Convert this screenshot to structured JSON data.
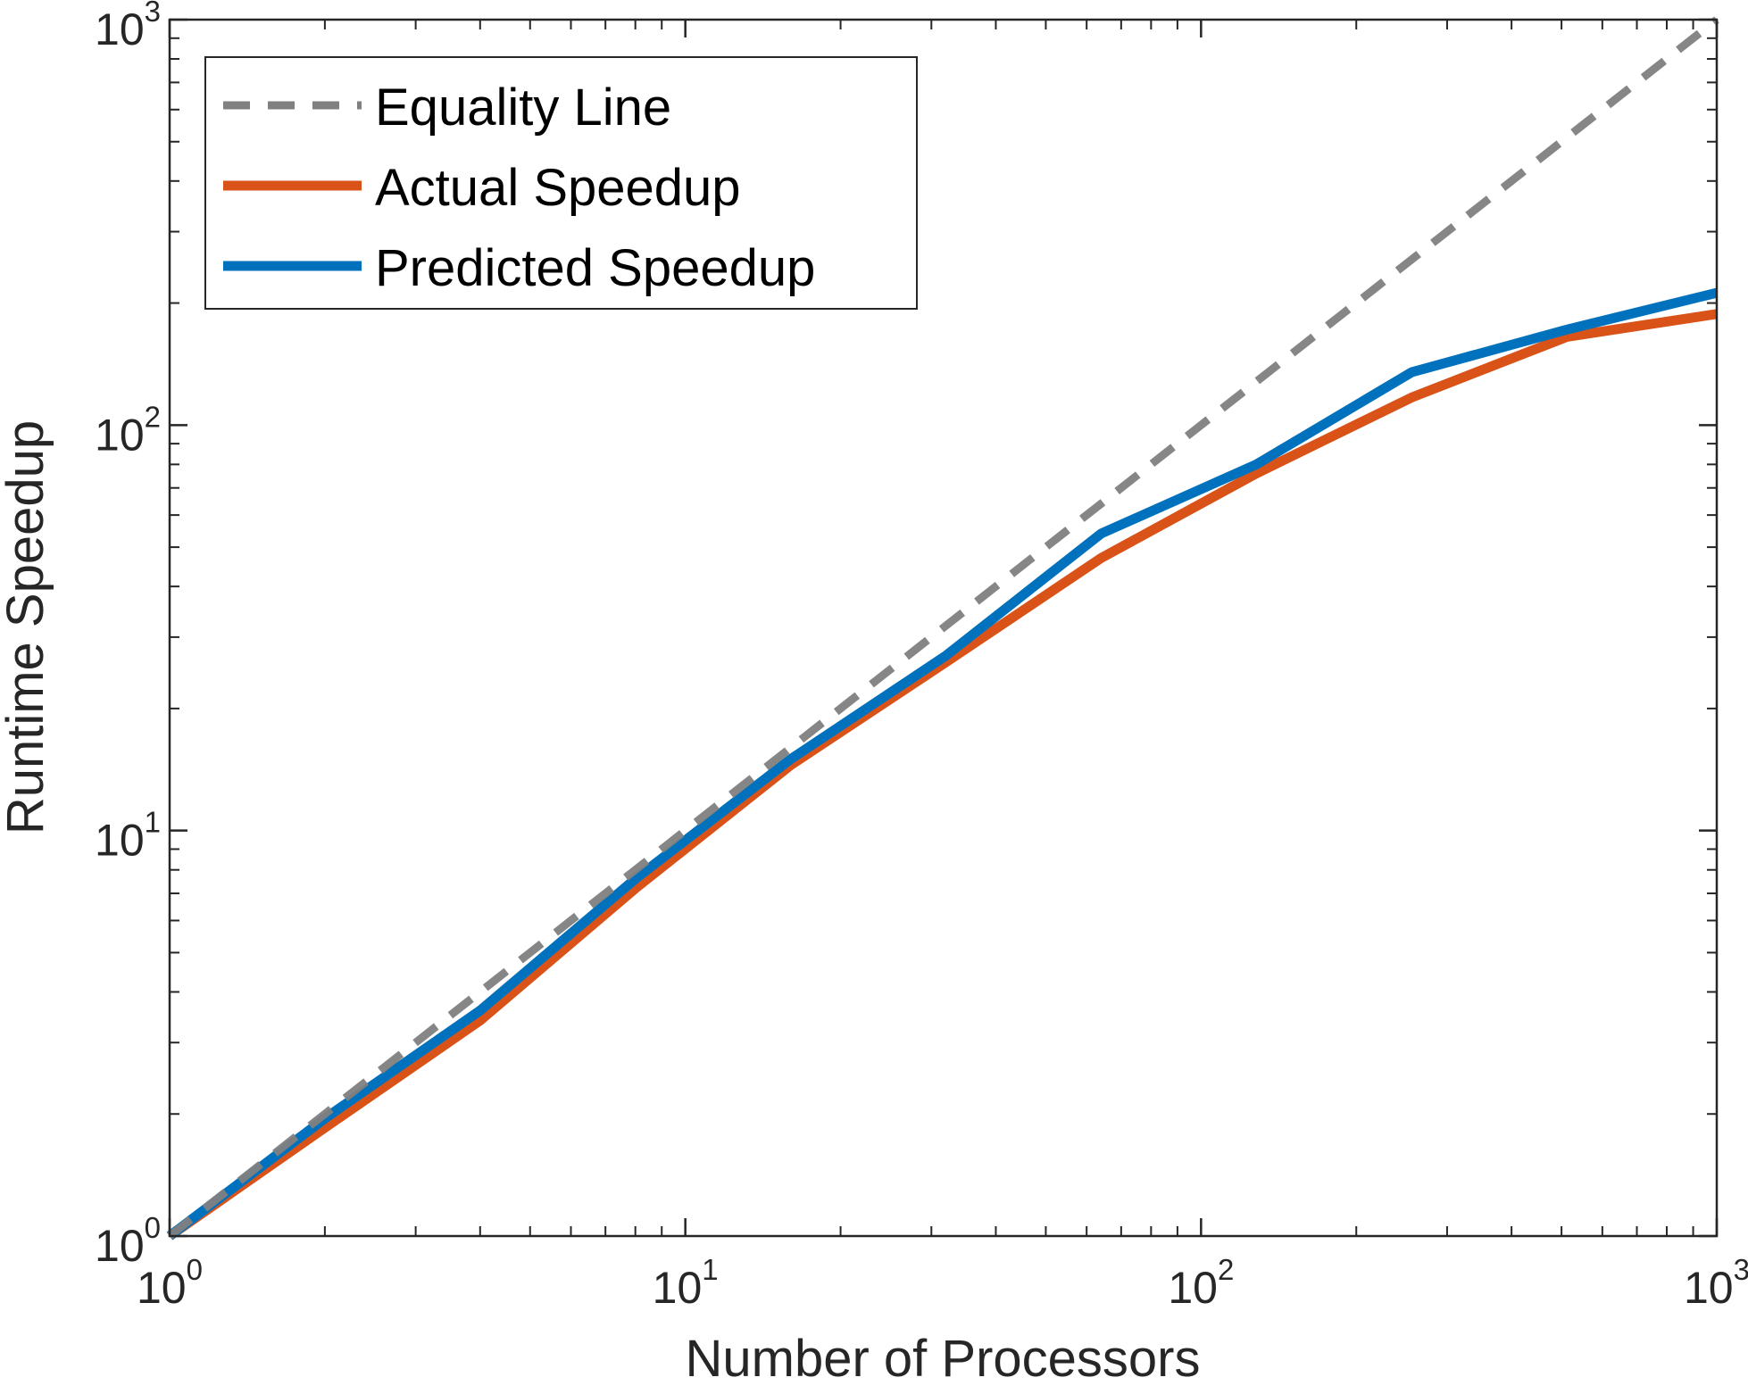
{
  "chart_data": {
    "type": "line",
    "xscale": "log",
    "yscale": "log",
    "xlabel": "Number of Processors",
    "ylabel": "Runtime Speedup",
    "xlim": [
      1,
      1000
    ],
    "ylim": [
      1,
      1000
    ],
    "x_ticks": [
      {
        "base": "10",
        "exp": "0"
      },
      {
        "base": "10",
        "exp": "1"
      },
      {
        "base": "10",
        "exp": "2"
      },
      {
        "base": "10",
        "exp": "3"
      }
    ],
    "y_ticks": [
      {
        "base": "10",
        "exp": "0"
      },
      {
        "base": "10",
        "exp": "1"
      },
      {
        "base": "10",
        "exp": "2"
      },
      {
        "base": "10",
        "exp": "3"
      }
    ],
    "legend_position": "top-left",
    "series": [
      {
        "name": "Equality Line",
        "color": "#808080",
        "style": "dashed",
        "x": [
          1,
          1000
        ],
        "y": [
          1,
          1000
        ]
      },
      {
        "name": "Actual Speedup",
        "color": "#D95319",
        "style": "solid",
        "x": [
          1,
          2,
          4,
          8,
          16,
          32,
          64,
          128,
          256,
          512,
          1000
        ],
        "y": [
          1,
          1.85,
          3.4,
          7.2,
          14.5,
          26,
          47,
          76,
          117,
          165,
          188
        ]
      },
      {
        "name": "Predicted Speedup",
        "color": "#0072BD",
        "style": "solid",
        "x": [
          1,
          2,
          4,
          8,
          16,
          32,
          64,
          128,
          256,
          512,
          1000
        ],
        "y": [
          1,
          1.95,
          3.6,
          7.6,
          15,
          27,
          54,
          80,
          135,
          172,
          212
        ]
      }
    ]
  }
}
